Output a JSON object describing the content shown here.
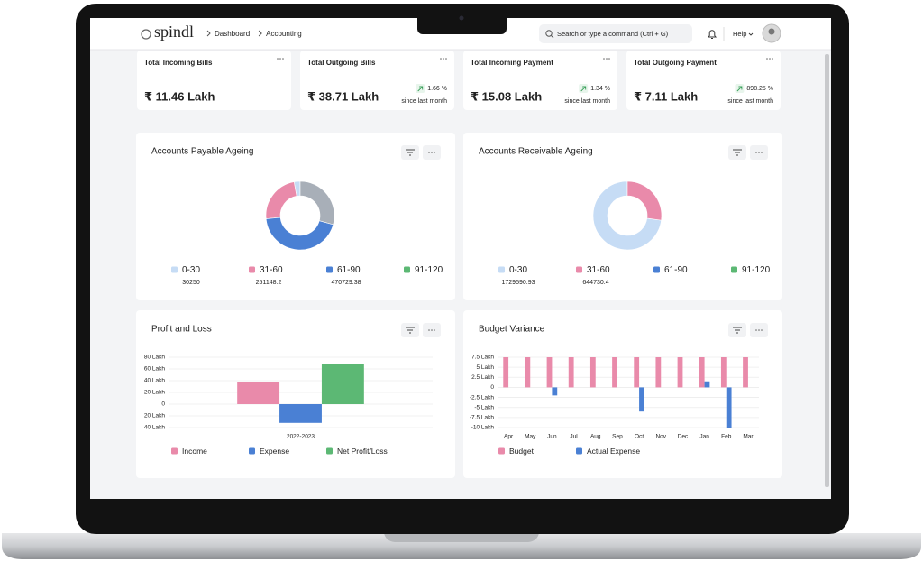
{
  "header": {
    "logo": "spindl",
    "breadcrumb": [
      "Dashboard",
      "Accounting"
    ],
    "search": "Search or type a command (Ctrl + G)",
    "help": "Help"
  },
  "kpis": [
    {
      "title": "Total Incoming Bills",
      "value": "₹ 11.46 Lakh"
    },
    {
      "title": "Total Outgoing Bills",
      "value": "₹ 38.71 Lakh",
      "change": "1.66 %",
      "note": "since last month"
    },
    {
      "title": "Total Incoming Payment",
      "value": "₹ 15.08 Lakh",
      "change": "1.34 %",
      "note": "since last month"
    },
    {
      "title": "Total Outgoing Payment",
      "value": "₹ 7.11 Lakh",
      "change": "898.25 %",
      "note": "since last month"
    }
  ],
  "chart_data": [
    {
      "type": "pie",
      "title": "Accounts Payable Ageing",
      "categories": [
        "0-30",
        "31-60",
        "61-90",
        "91-120"
      ],
      "values": [
        30250,
        251148.2,
        470729.38,
        310000
      ],
      "value_labels": [
        "30250",
        "251148.2",
        "470729.38",
        null
      ],
      "colors": [
        "#c6dcf5",
        "#e98aaa",
        "#4a80d4",
        "#5cb874"
      ],
      "slice_colors": [
        "#c6dcf5",
        "#e98aaa",
        "#4a80d4",
        "#a8afb8"
      ]
    },
    {
      "type": "pie",
      "title": "Accounts Receivable Ageing",
      "categories": [
        "0-30",
        "31-60",
        "61-90",
        "91-120"
      ],
      "values": [
        1729590.93,
        644730.4,
        null,
        null
      ],
      "value_labels": [
        "1729590.93",
        "644730.4",
        null,
        null
      ],
      "colors": [
        "#c6dcf5",
        "#e98aaa",
        "#4a80d4",
        "#5cb874"
      ],
      "slice_colors": [
        "#c6dcf5",
        "#e98aaa",
        "#4a80d4",
        "#a8afb8"
      ]
    },
    {
      "type": "bar",
      "title": "Profit and Loss",
      "categories": [
        "2022-2023"
      ],
      "series": [
        {
          "name": "Income",
          "color": "#e98aaa",
          "values": [
            38
          ]
        },
        {
          "name": "Expense",
          "color": "#4a80d4",
          "values": [
            -32
          ]
        },
        {
          "name": "Net Profit/Loss",
          "color": "#5cb874",
          "values": [
            69
          ]
        }
      ],
      "ylim": [
        -40,
        80
      ],
      "yticks": [
        {
          "value": 80,
          "label": "80 Lakh"
        },
        {
          "value": 60,
          "label": "60 Lakh"
        },
        {
          "value": 40,
          "label": "40 Lakh"
        },
        {
          "value": 20,
          "label": "20 Lakh"
        },
        0,
        {
          "value": -20,
          "label": "20 Lakh"
        },
        {
          "value": -40,
          "label": "40 Lakh"
        }
      ],
      "grid": true
    },
    {
      "type": "bar",
      "title": "Budget Variance",
      "categories": [
        "Apr",
        "May",
        "Jun",
        "Jul",
        "Aug",
        "Sep",
        "Oct",
        "Nov",
        "Dec",
        "Jan",
        "Feb",
        "Mar"
      ],
      "series": [
        {
          "name": "Budget",
          "color": "#e98aaa",
          "values": [
            7.5,
            7.5,
            7.5,
            7.5,
            7.5,
            7.5,
            7.5,
            7.5,
            7.5,
            7.5,
            7.5,
            7.5
          ]
        },
        {
          "name": "Actual Expense",
          "color": "#4a80d4",
          "values": [
            null,
            null,
            -2,
            null,
            null,
            null,
            -6,
            null,
            null,
            1.5,
            -10,
            null
          ]
        }
      ],
      "ylim": [
        -10,
        7.5
      ],
      "yticks": [
        {
          "value": 7.5,
          "label": "7.5 Lakh"
        },
        {
          "value": 5,
          "label": "5 Lakh"
        },
        {
          "value": 2.5,
          "label": "2.5 Lakh"
        },
        0,
        {
          "value": -2.5,
          "label": "-2.5 Lakh"
        },
        {
          "value": -5,
          "label": "-5 Lakh"
        },
        {
          "value": -7.5,
          "label": "-7.5 Lakh"
        },
        {
          "value": -10,
          "label": "-10 Lakh"
        }
      ],
      "grid": true
    }
  ]
}
